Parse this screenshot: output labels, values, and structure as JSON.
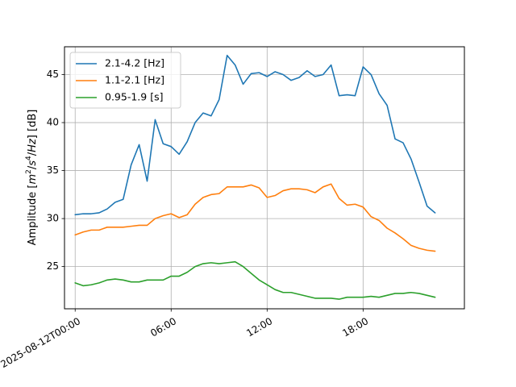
{
  "chart_data": {
    "type": "line",
    "title": "",
    "xlabel": "",
    "ylabel": "Amplitude",
    "ylabel_unit": "[dB]",
    "xlim": [
      "2025-08-11T23:20",
      "2025-08-13T00:20"
    ],
    "ylim": [
      20.6,
      47.9
    ],
    "grid": true,
    "legend_position": "top-left",
    "x_ticks": [
      {
        "value": "2025-08-12T00:00",
        "label": "2025-08-12T00:00"
      },
      {
        "value": "2025-08-12T06:00",
        "label": "06:00"
      },
      {
        "value": "2025-08-12T12:00",
        "label": "12:00"
      },
      {
        "value": "2025-08-12T18:00",
        "label": "18:00"
      }
    ],
    "y_ticks": [
      25,
      30,
      35,
      40,
      45
    ],
    "x": [
      "2025-08-12T00:00",
      "2025-08-12T00:30",
      "2025-08-12T01:00",
      "2025-08-12T01:30",
      "2025-08-12T02:00",
      "2025-08-12T02:30",
      "2025-08-12T03:00",
      "2025-08-12T03:30",
      "2025-08-12T04:00",
      "2025-08-12T04:30",
      "2025-08-12T05:00",
      "2025-08-12T05:30",
      "2025-08-12T06:00",
      "2025-08-12T06:30",
      "2025-08-12T07:00",
      "2025-08-12T07:30",
      "2025-08-12T08:00",
      "2025-08-12T08:30",
      "2025-08-12T09:00",
      "2025-08-12T09:30",
      "2025-08-12T10:00",
      "2025-08-12T10:30",
      "2025-08-12T11:00",
      "2025-08-12T11:30",
      "2025-08-12T12:00",
      "2025-08-12T12:30",
      "2025-08-12T13:00",
      "2025-08-12T13:30",
      "2025-08-12T14:00",
      "2025-08-12T14:30",
      "2025-08-12T15:00",
      "2025-08-12T15:30",
      "2025-08-12T16:00",
      "2025-08-12T16:30",
      "2025-08-12T17:00",
      "2025-08-12T17:30",
      "2025-08-12T18:00",
      "2025-08-12T18:30",
      "2025-08-12T19:00",
      "2025-08-12T19:30",
      "2025-08-12T20:00",
      "2025-08-12T20:30",
      "2025-08-12T21:00",
      "2025-08-12T21:30",
      "2025-08-12T22:00",
      "2025-08-12T22:30"
    ],
    "series": [
      {
        "name": "2.1-4.2 [Hz]",
        "color": "#1f77b4",
        "values": [
          30.4,
          30.5,
          30.5,
          30.6,
          31.0,
          31.7,
          32.0,
          35.6,
          37.7,
          33.9,
          40.3,
          37.8,
          37.5,
          36.7,
          38.0,
          40.0,
          41.0,
          40.7,
          42.4,
          47.0,
          46.0,
          44.0,
          45.1,
          45.2,
          44.8,
          45.3,
          45.0,
          44.4,
          44.7,
          45.4,
          44.8,
          45.0,
          46.0,
          42.8,
          42.9,
          42.8,
          45.8,
          45.0,
          43.0,
          41.8,
          38.3,
          37.9,
          36.2,
          33.8,
          31.3,
          30.6
        ]
      },
      {
        "name": "1.1-2.1 [Hz]",
        "color": "#ff7f0e",
        "values": [
          28.3,
          28.6,
          28.8,
          28.8,
          29.1,
          29.1,
          29.1,
          29.2,
          29.3,
          29.3,
          30.0,
          30.3,
          30.5,
          30.1,
          30.4,
          31.5,
          32.2,
          32.5,
          32.6,
          33.3,
          33.3,
          33.3,
          33.5,
          33.2,
          32.2,
          32.4,
          32.9,
          33.1,
          33.1,
          33.0,
          32.7,
          33.3,
          33.6,
          32.1,
          31.4,
          31.5,
          31.2,
          30.2,
          29.8,
          29.0,
          28.5,
          27.9,
          27.2,
          26.9,
          26.7,
          26.6
        ]
      },
      {
        "name": "0.95-1.9 [s]",
        "color": "#2ca02c",
        "values": [
          23.3,
          23.0,
          23.1,
          23.3,
          23.6,
          23.7,
          23.6,
          23.4,
          23.4,
          23.6,
          23.6,
          23.6,
          24.0,
          24.0,
          24.4,
          25.0,
          25.3,
          25.4,
          25.3,
          25.4,
          25.5,
          25.0,
          24.3,
          23.6,
          23.1,
          22.6,
          22.3,
          22.3,
          22.1,
          21.9,
          21.7,
          21.7,
          21.7,
          21.6,
          21.8,
          21.8,
          21.8,
          21.9,
          21.8,
          22.0,
          22.2,
          22.2,
          22.3,
          22.2,
          22.0,
          21.8
        ]
      }
    ]
  }
}
